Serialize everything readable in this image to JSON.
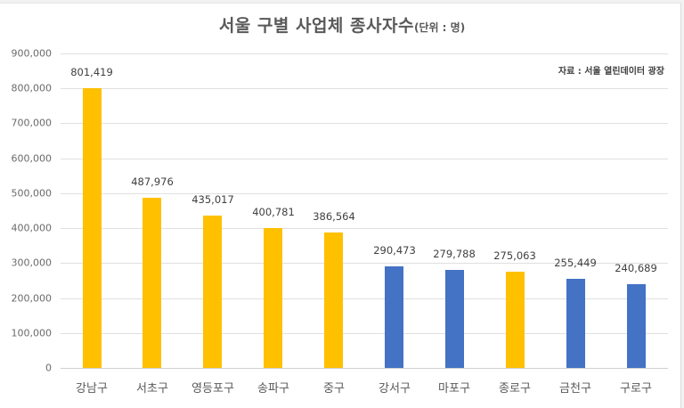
{
  "title": {
    "main": "서울 구별 사업체 종사자수",
    "unit": "(단위 : 명)"
  },
  "source": "자료 : 서울 열린데이터 광장",
  "colors": {
    "highlight": "#ffc000",
    "default": "#4472c4",
    "grid": "#e0e0e0",
    "text": "#595959"
  },
  "y_axis": {
    "ticks": [
      "900,000",
      "800,000",
      "700,000",
      "600,000",
      "500,000",
      "400,000",
      "300,000",
      "200,000",
      "100,000",
      "0"
    ]
  },
  "bars": [
    {
      "category": "강남구",
      "value_label": "801,419",
      "color": "#ffc000"
    },
    {
      "category": "서초구",
      "value_label": "487,976",
      "color": "#ffc000"
    },
    {
      "category": "영등포구",
      "value_label": "435,017",
      "color": "#ffc000"
    },
    {
      "category": "송파구",
      "value_label": "400,781",
      "color": "#ffc000"
    },
    {
      "category": "중구",
      "value_label": "386,564",
      "color": "#ffc000"
    },
    {
      "category": "강서구",
      "value_label": "290,473",
      "color": "#4472c4"
    },
    {
      "category": "마포구",
      "value_label": "279,788",
      "color": "#4472c4"
    },
    {
      "category": "종로구",
      "value_label": "275,063",
      "color": "#ffc000"
    },
    {
      "category": "금천구",
      "value_label": "255,449",
      "color": "#4472c4"
    },
    {
      "category": "구로구",
      "value_label": "240,689",
      "color": "#4472c4"
    }
  ],
  "chart_data": {
    "type": "bar",
    "title": "서울 구별 사업체 종사자수(단위 : 명)",
    "annotation": "자료 : 서울 열린데이터 광장",
    "categories": [
      "강남구",
      "서초구",
      "영등포구",
      "송파구",
      "중구",
      "강서구",
      "마포구",
      "종로구",
      "금천구",
      "구로구"
    ],
    "values": [
      801419,
      487976,
      435017,
      400781,
      386564,
      290473,
      279788,
      275063,
      255449,
      240689
    ],
    "bar_colors": [
      "#ffc000",
      "#ffc000",
      "#ffc000",
      "#ffc000",
      "#ffc000",
      "#4472c4",
      "#4472c4",
      "#ffc000",
      "#4472c4",
      "#4472c4"
    ],
    "xlabel": "",
    "ylabel": "",
    "ylim": [
      0,
      900000
    ],
    "yticks": [
      0,
      100000,
      200000,
      300000,
      400000,
      500000,
      600000,
      700000,
      800000,
      900000
    ],
    "grid": true,
    "legend": null,
    "data_labels": true
  }
}
